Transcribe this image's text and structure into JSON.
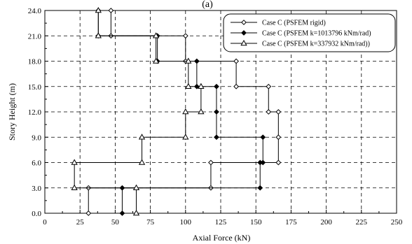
{
  "chart_data": {
    "type": "line",
    "title": "(a)",
    "xlabel": "Axial Force (kN)",
    "ylabel": "Story Height (m)",
    "xlim": [
      0,
      250
    ],
    "ylim": [
      0,
      24
    ],
    "x_ticks": [
      "0",
      "25",
      "50",
      "75",
      "100",
      "125",
      "150",
      "175",
      "200",
      "225",
      "250"
    ],
    "y_ticks": [
      "0.0",
      "3.0",
      "6.0",
      "9.0",
      "12.0",
      "15.0",
      "18.0",
      "21.0",
      "24.0"
    ],
    "grid": true,
    "legend_position": "top-right",
    "series": [
      {
        "name": "Case C (PSFEM rigid)",
        "marker": "diamond-open",
        "points": [
          [
            31,
            0
          ],
          [
            31,
            3
          ],
          [
            118,
            3
          ],
          [
            118,
            6
          ],
          [
            166,
            6
          ],
          [
            166,
            9
          ],
          [
            166,
            12
          ],
          [
            159,
            12
          ],
          [
            159,
            15
          ],
          [
            136,
            15
          ],
          [
            136,
            18
          ],
          [
            100,
            18
          ],
          [
            100,
            21
          ],
          [
            47,
            21
          ],
          [
            47,
            24
          ]
        ]
      },
      {
        "name": "Case C (PSFEM k=1013796 kNm/rad)",
        "marker": "diamond-filled",
        "points": [
          [
            55,
            0
          ],
          [
            55,
            3
          ],
          [
            153,
            3
          ],
          [
            153,
            6
          ],
          [
            155,
            6
          ],
          [
            155,
            9
          ],
          [
            122,
            9
          ],
          [
            122,
            12
          ],
          [
            122,
            15
          ],
          [
            108,
            15
          ],
          [
            108,
            18
          ],
          [
            80,
            18
          ],
          [
            80,
            21
          ],
          [
            38,
            21
          ],
          [
            38,
            24
          ]
        ]
      },
      {
        "name": "Case C (PSFEM k=337932 kNm/rad))",
        "marker": "triangle-open",
        "points": [
          [
            65,
            0
          ],
          [
            65,
            3
          ],
          [
            21,
            3
          ],
          [
            21,
            6
          ],
          [
            69,
            6
          ],
          [
            69,
            9
          ],
          [
            100,
            9
          ],
          [
            100,
            12
          ],
          [
            111,
            12
          ],
          [
            111,
            15
          ],
          [
            102,
            15
          ],
          [
            102,
            18
          ],
          [
            79,
            18
          ],
          [
            79,
            21
          ],
          [
            38,
            21
          ],
          [
            38,
            24
          ]
        ]
      }
    ]
  }
}
